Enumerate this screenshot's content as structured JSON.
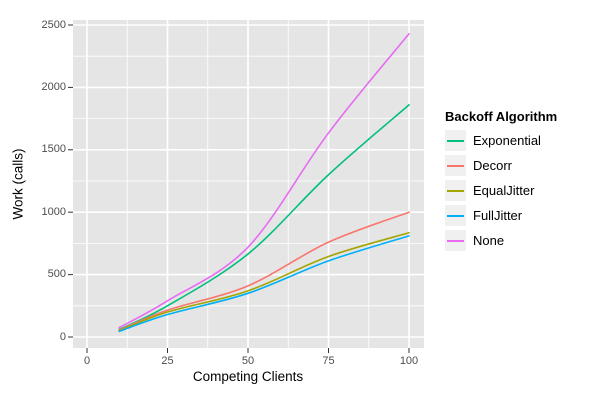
{
  "chart_data": {
    "type": "line",
    "x": [
      10,
      25,
      50,
      75,
      100
    ],
    "series": [
      {
        "name": "Exponential",
        "color": "#00BF7D",
        "values": [
          60,
          250,
          665,
          1300,
          1860
        ]
      },
      {
        "name": "Decorr",
        "color": "#F8766D",
        "values": [
          55,
          215,
          410,
          760,
          1000
        ]
      },
      {
        "name": "EqualJitter",
        "color": "#A3A500",
        "values": [
          50,
          200,
          370,
          645,
          835
        ]
      },
      {
        "name": "FullJitter",
        "color": "#00B0F6",
        "values": [
          45,
          180,
          350,
          610,
          810
        ]
      },
      {
        "name": "None",
        "color": "#E76BF3",
        "values": [
          75,
          290,
          720,
          1635,
          2430
        ]
      }
    ],
    "title": "",
    "xlabel": "Competing Clients",
    "ylabel": "Work (calls)",
    "xlim": [
      -4,
      105
    ],
    "ylim": [
      -90,
      2540
    ],
    "x_ticks": [
      "0",
      "25",
      "50",
      "75",
      "100"
    ],
    "x_tick_values": [
      0,
      25,
      50,
      75,
      100
    ],
    "y_ticks": [
      "0",
      "500",
      "1000",
      "1500",
      "2000",
      "2500"
    ],
    "y_tick_values": [
      0,
      500,
      1000,
      1500,
      2000,
      2500
    ],
    "grid": true,
    "legend_title": "Backoff Algorithm",
    "legend_position": "right",
    "panel_bg": "#E5E5E5",
    "grid_color": "#FFFFFF",
    "tick_color": "#333333"
  }
}
